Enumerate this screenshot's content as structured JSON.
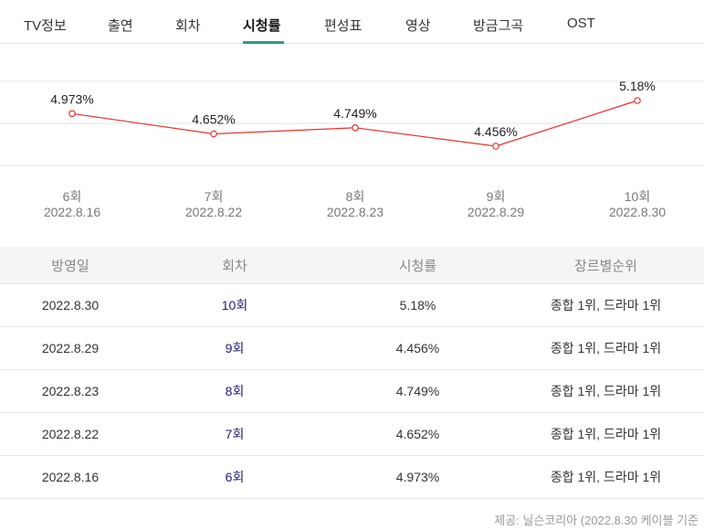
{
  "tabs": [
    {
      "label": "TV정보",
      "active": false
    },
    {
      "label": "출연",
      "active": false
    },
    {
      "label": "회차",
      "active": false
    },
    {
      "label": "시청률",
      "active": true
    },
    {
      "label": "편성표",
      "active": false
    },
    {
      "label": "영상",
      "active": false
    },
    {
      "label": "방금그곡",
      "active": false
    },
    {
      "label": "OST",
      "active": false
    }
  ],
  "colors": {
    "line": "#e8302d",
    "accent": "#2f9c86"
  },
  "chart_data": {
    "type": "line",
    "categories": [
      {
        "episode": "6회",
        "date": "2022.8.16"
      },
      {
        "episode": "7회",
        "date": "2022.8.22"
      },
      {
        "episode": "8회",
        "date": "2022.8.23"
      },
      {
        "episode": "9회",
        "date": "2022.8.29"
      },
      {
        "episode": "10회",
        "date": "2022.8.30"
      }
    ],
    "values": [
      4.973,
      4.652,
      4.749,
      4.456,
      5.18
    ],
    "value_labels": [
      "4.973%",
      "4.652%",
      "4.749%",
      "4.456%",
      "5.18%"
    ],
    "grid": true
  },
  "table": {
    "headers": [
      "방영일",
      "회차",
      "시청률",
      "장르별순위"
    ],
    "rows": [
      [
        "2022.8.30",
        "10회",
        "5.18%",
        "종합 1위, 드라마 1위"
      ],
      [
        "2022.8.29",
        "9회",
        "4.456%",
        "종합 1위, 드라마 1위"
      ],
      [
        "2022.8.23",
        "8회",
        "4.749%",
        "종합 1위, 드라마 1위"
      ],
      [
        "2022.8.22",
        "7회",
        "4.652%",
        "종합 1위, 드라마 1위"
      ],
      [
        "2022.8.16",
        "6회",
        "4.973%",
        "종합 1위, 드라마 1위"
      ]
    ]
  },
  "source": "제공: 닐슨코리아 (2022.8.30 케이블 기준"
}
